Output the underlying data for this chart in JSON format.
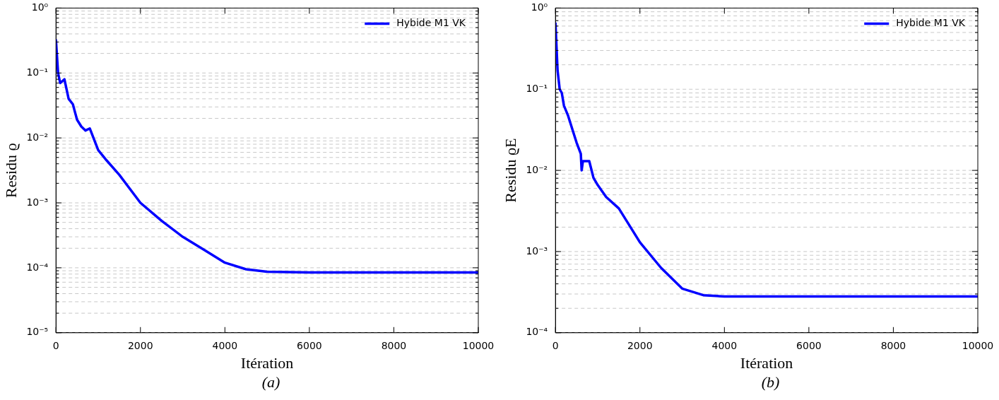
{
  "chart_data": [
    {
      "type": "line",
      "xlabel": "Itération",
      "ylabel": "Residu ϱ",
      "annotations": [
        "(a)"
      ],
      "log": "y",
      "grid": "y",
      "legend": "top right",
      "line_style": "solid",
      "marker": "none",
      "xlim": [
        0,
        10000
      ],
      "xticks": [
        0,
        2000,
        4000,
        6000,
        8000,
        10000
      ],
      "ylim": [
        1e-05,
        1
      ],
      "yticks": [
        {
          "value": 1e-05,
          "label": "10⁻⁵"
        },
        {
          "value": 0.0001,
          "label": "10⁻⁴"
        },
        {
          "value": 0.001,
          "label": "10⁻³"
        },
        {
          "value": 0.01,
          "label": "10⁻²"
        },
        {
          "value": 0.1,
          "label": "10⁻¹"
        },
        {
          "value": 1,
          "label": "10⁰"
        }
      ],
      "series": [
        {
          "name": "Hybide M1 VK",
          "color": "#0000ff",
          "x": [
            0,
            50,
            100,
            200,
            300,
            400,
            450,
            500,
            600,
            700,
            800,
            1000,
            1200,
            1500,
            2000,
            2500,
            3000,
            3500,
            4000,
            4500,
            5000,
            6000,
            7000,
            8000,
            9000,
            10000
          ],
          "values": [
            0.32,
            0.1,
            0.07,
            0.08,
            0.04,
            0.033,
            0.025,
            0.019,
            0.015,
            0.013,
            0.014,
            0.0065,
            0.0045,
            0.0027,
            0.001,
            0.00053,
            0.0003,
            0.00019,
            0.00012,
            9.5e-05,
            8.7e-05,
            8.5e-05,
            8.5e-05,
            8.5e-05,
            8.5e-05,
            8.5e-05
          ]
        }
      ]
    },
    {
      "type": "line",
      "xlabel": "Itération",
      "ylabel": "Residu ϱE",
      "annotations": [
        "(b)"
      ],
      "log": "y",
      "grid": "y",
      "legend": "top right",
      "line_style": "solid",
      "marker": "none",
      "xlim": [
        0,
        10000
      ],
      "xticks": [
        0,
        2000,
        4000,
        6000,
        8000,
        10000
      ],
      "ylim": [
        0.0001,
        1
      ],
      "yticks": [
        {
          "value": 0.0001,
          "label": "10⁻⁴"
        },
        {
          "value": 0.001,
          "label": "10⁻³"
        },
        {
          "value": 0.01,
          "label": "10⁻²"
        },
        {
          "value": 0.1,
          "label": "10⁻¹"
        },
        {
          "value": 1,
          "label": "10⁰"
        }
      ],
      "series": [
        {
          "name": "Hybide M1 VK",
          "color": "#0000ff",
          "x": [
            0,
            50,
            100,
            150,
            200,
            300,
            400,
            500,
            600,
            620,
            650,
            700,
            800,
            900,
            1000,
            1200,
            1500,
            2000,
            2500,
            3000,
            3500,
            4000,
            5000,
            6000,
            7000,
            8000,
            9000,
            10000
          ],
          "values": [
            0.65,
            0.17,
            0.1,
            0.09,
            0.063,
            0.047,
            0.032,
            0.022,
            0.016,
            0.01,
            0.013,
            0.013,
            0.013,
            0.0081,
            0.0066,
            0.0047,
            0.0034,
            0.0013,
            0.00063,
            0.00035,
            0.00029,
            0.00028,
            0.00028,
            0.00028,
            0.00028,
            0.00028,
            0.00028,
            0.00028
          ]
        }
      ]
    }
  ]
}
